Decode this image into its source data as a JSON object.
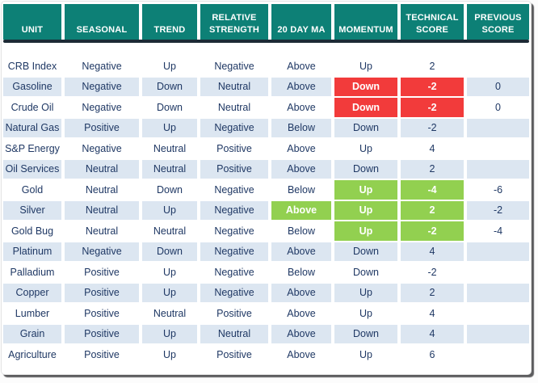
{
  "colors": {
    "teal": "#0d8076",
    "navy_bar": "#1c2a35",
    "row_alt": "#dce6f1",
    "text": "#1f3864",
    "red": "#f23b3b",
    "green": "#92d050"
  },
  "chart_data": {
    "type": "table",
    "title": "",
    "columns": [
      "UNIT",
      "SEASONAL",
      "TREND",
      "RELATIVE STRENGTH",
      "20 DAY MA",
      "MOMENTUM",
      "TECHNICAL SCORE",
      "PREVIOUS SCORE"
    ],
    "keys": [
      "unit",
      "seasonal",
      "trend",
      "relative_strength",
      "twenty_day_ma",
      "momentum",
      "technical_score",
      "previous_score"
    ],
    "rows": [
      {
        "unit": "CRB Index",
        "seasonal": "Negative",
        "trend": "Up",
        "relative_strength": "Negative",
        "twenty_day_ma": "Above",
        "momentum": "Up",
        "technical_score": "2",
        "previous_score": "",
        "highlight": {}
      },
      {
        "unit": "Gasoline",
        "seasonal": "Negative",
        "trend": "Down",
        "relative_strength": "Neutral",
        "twenty_day_ma": "Above",
        "momentum": "Down",
        "technical_score": "-2",
        "previous_score": "0",
        "highlight": {
          "momentum": "red",
          "technical_score": "red"
        }
      },
      {
        "unit": "Crude Oil",
        "seasonal": "Negative",
        "trend": "Down",
        "relative_strength": "Neutral",
        "twenty_day_ma": "Above",
        "momentum": "Down",
        "technical_score": "-2",
        "previous_score": "0",
        "highlight": {
          "momentum": "red",
          "technical_score": "red"
        }
      },
      {
        "unit": "Natural Gas",
        "seasonal": "Positive",
        "trend": "Up",
        "relative_strength": "Negative",
        "twenty_day_ma": "Below",
        "momentum": "Down",
        "technical_score": "-2",
        "previous_score": "",
        "highlight": {}
      },
      {
        "unit": "S&P Energy",
        "seasonal": "Negative",
        "trend": "Neutral",
        "relative_strength": "Positive",
        "twenty_day_ma": "Above",
        "momentum": "Up",
        "technical_score": "4",
        "previous_score": "",
        "highlight": {}
      },
      {
        "unit": "Oil Services",
        "seasonal": "Neutral",
        "trend": "Neutral",
        "relative_strength": "Positive",
        "twenty_day_ma": "Above",
        "momentum": "Down",
        "technical_score": "2",
        "previous_score": "",
        "highlight": {}
      },
      {
        "unit": "Gold",
        "seasonal": "Neutral",
        "trend": "Down",
        "relative_strength": "Negative",
        "twenty_day_ma": "Below",
        "momentum": "Up",
        "technical_score": "-4",
        "previous_score": "-6",
        "highlight": {
          "momentum": "green",
          "technical_score": "green"
        }
      },
      {
        "unit": "Silver",
        "seasonal": "Neutral",
        "trend": "Up",
        "relative_strength": "Negative",
        "twenty_day_ma": "Above",
        "momentum": "Up",
        "technical_score": "2",
        "previous_score": "-2",
        "highlight": {
          "twenty_day_ma": "green",
          "momentum": "green",
          "technical_score": "green"
        }
      },
      {
        "unit": "Gold Bug",
        "seasonal": "Neutral",
        "trend": "Neutral",
        "relative_strength": "Negative",
        "twenty_day_ma": "Below",
        "momentum": "Up",
        "technical_score": "-2",
        "previous_score": "-4",
        "highlight": {
          "momentum": "green",
          "technical_score": "green"
        }
      },
      {
        "unit": "Platinum",
        "seasonal": "Negative",
        "trend": "Down",
        "relative_strength": "Negative",
        "twenty_day_ma": "Above",
        "momentum": "Down",
        "technical_score": "4",
        "previous_score": "",
        "highlight": {}
      },
      {
        "unit": "Palladium",
        "seasonal": "Positive",
        "trend": "Up",
        "relative_strength": "Negative",
        "twenty_day_ma": "Below",
        "momentum": "Down",
        "technical_score": "-2",
        "previous_score": "",
        "highlight": {}
      },
      {
        "unit": "Copper",
        "seasonal": "Positive",
        "trend": "Up",
        "relative_strength": "Negative",
        "twenty_day_ma": "Above",
        "momentum": "Up",
        "technical_score": "2",
        "previous_score": "",
        "highlight": {}
      },
      {
        "unit": "Lumber",
        "seasonal": "Positive",
        "trend": "Neutral",
        "relative_strength": "Positive",
        "twenty_day_ma": "Above",
        "momentum": "Up",
        "technical_score": "4",
        "previous_score": "",
        "highlight": {}
      },
      {
        "unit": "Grain",
        "seasonal": "Positive",
        "trend": "Up",
        "relative_strength": "Neutral",
        "twenty_day_ma": "Above",
        "momentum": "Down",
        "technical_score": "4",
        "previous_score": "",
        "highlight": {}
      },
      {
        "unit": "Agriculture",
        "seasonal": "Positive",
        "trend": "Up",
        "relative_strength": "Positive",
        "twenty_day_ma": "Above",
        "momentum": "Up",
        "technical_score": "6",
        "previous_score": "",
        "highlight": {}
      }
    ]
  }
}
